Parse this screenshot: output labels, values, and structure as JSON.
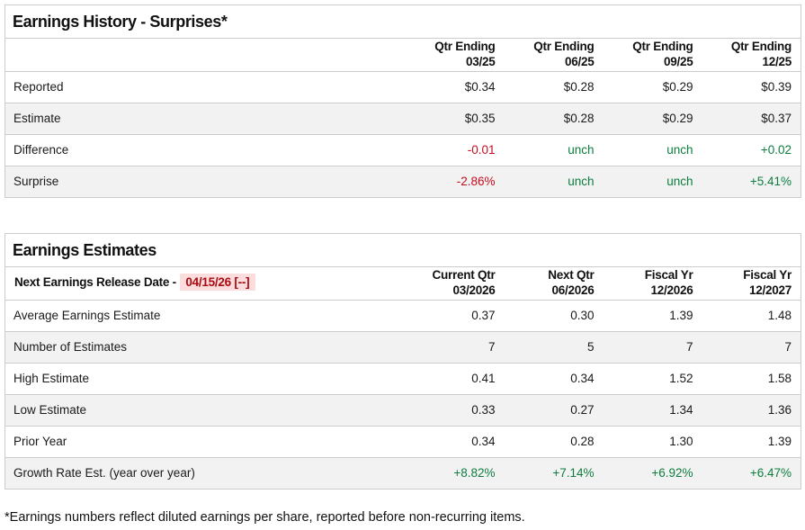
{
  "colors": {
    "positive_text": "#0e7d3f",
    "negative_text": "#c50d1f",
    "release_date_text": "#a80b10",
    "release_date_highlight": "#fbdddd",
    "alt_row_background": "#f2f2f2",
    "table_border": "#cccccc"
  },
  "earnings_history": {
    "title": "Earnings History - Surprises*",
    "columns": [
      {
        "line1": "Qtr Ending",
        "line2": "03/25"
      },
      {
        "line1": "Qtr Ending",
        "line2": "06/25"
      },
      {
        "line1": "Qtr Ending",
        "line2": "09/25"
      },
      {
        "line1": "Qtr Ending",
        "line2": "12/25"
      }
    ],
    "rows": [
      {
        "label": "Reported",
        "values": [
          {
            "text": "$0.34",
            "tone": "neutral"
          },
          {
            "text": "$0.28",
            "tone": "neutral"
          },
          {
            "text": "$0.29",
            "tone": "neutral"
          },
          {
            "text": "$0.39",
            "tone": "neutral"
          }
        ]
      },
      {
        "label": "Estimate",
        "values": [
          {
            "text": "$0.35",
            "tone": "neutral"
          },
          {
            "text": "$0.28",
            "tone": "neutral"
          },
          {
            "text": "$0.29",
            "tone": "neutral"
          },
          {
            "text": "$0.37",
            "tone": "neutral"
          }
        ]
      },
      {
        "label": "Difference",
        "values": [
          {
            "text": "-0.01",
            "tone": "negative"
          },
          {
            "text": "unch",
            "tone": "positive"
          },
          {
            "text": "unch",
            "tone": "positive"
          },
          {
            "text": "+0.02",
            "tone": "positive"
          }
        ]
      },
      {
        "label": "Surprise",
        "values": [
          {
            "text": "-2.86%",
            "tone": "negative"
          },
          {
            "text": "unch",
            "tone": "positive"
          },
          {
            "text": "unch",
            "tone": "positive"
          },
          {
            "text": "+5.41%",
            "tone": "positive"
          }
        ]
      }
    ]
  },
  "earnings_estimates": {
    "title": "Earnings Estimates",
    "release_date_label": "Next Earnings Release Date - ",
    "release_date_value": "04/15/26 [--]",
    "columns": [
      {
        "line1": "Current Qtr",
        "line2": "03/2026"
      },
      {
        "line1": "Next Qtr",
        "line2": "06/2026"
      },
      {
        "line1": "Fiscal Yr",
        "line2": "12/2026"
      },
      {
        "line1": "Fiscal Yr",
        "line2": "12/2027"
      }
    ],
    "rows": [
      {
        "label": "Average Earnings Estimate",
        "values": [
          {
            "text": "0.37",
            "tone": "neutral"
          },
          {
            "text": "0.30",
            "tone": "neutral"
          },
          {
            "text": "1.39",
            "tone": "neutral"
          },
          {
            "text": "1.48",
            "tone": "neutral"
          }
        ]
      },
      {
        "label": "Number of Estimates",
        "values": [
          {
            "text": "7",
            "tone": "neutral"
          },
          {
            "text": "5",
            "tone": "neutral"
          },
          {
            "text": "7",
            "tone": "neutral"
          },
          {
            "text": "7",
            "tone": "neutral"
          }
        ]
      },
      {
        "label": "High Estimate",
        "values": [
          {
            "text": "0.41",
            "tone": "neutral"
          },
          {
            "text": "0.34",
            "tone": "neutral"
          },
          {
            "text": "1.52",
            "tone": "neutral"
          },
          {
            "text": "1.58",
            "tone": "neutral"
          }
        ]
      },
      {
        "label": "Low Estimate",
        "values": [
          {
            "text": "0.33",
            "tone": "neutral"
          },
          {
            "text": "0.27",
            "tone": "neutral"
          },
          {
            "text": "1.34",
            "tone": "neutral"
          },
          {
            "text": "1.36",
            "tone": "neutral"
          }
        ]
      },
      {
        "label": "Prior Year",
        "values": [
          {
            "text": "0.34",
            "tone": "neutral"
          },
          {
            "text": "0.28",
            "tone": "neutral"
          },
          {
            "text": "1.30",
            "tone": "neutral"
          },
          {
            "text": "1.39",
            "tone": "neutral"
          }
        ]
      },
      {
        "label": "Growth Rate Est. (year over year)",
        "values": [
          {
            "text": "+8.82%",
            "tone": "positive"
          },
          {
            "text": "+7.14%",
            "tone": "positive"
          },
          {
            "text": "+6.92%",
            "tone": "positive"
          },
          {
            "text": "+6.47%",
            "tone": "positive"
          }
        ]
      }
    ]
  },
  "footnote": "*Earnings numbers reflect diluted earnings per share, reported before non-recurring items."
}
